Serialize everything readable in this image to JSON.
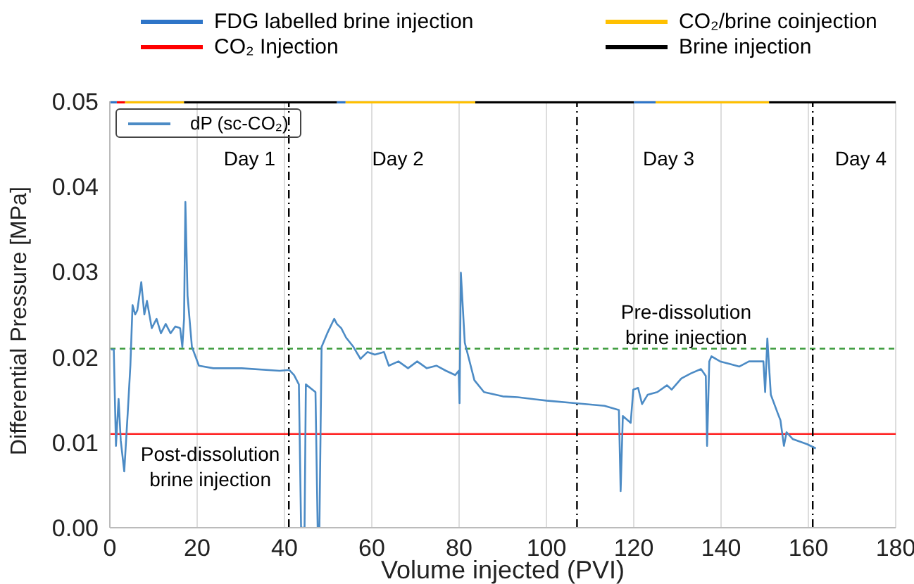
{
  "chart_data": {
    "type": "line",
    "xlabel": "Volume injected (PVI)",
    "ylabel": "Differential Pressure [MPa]",
    "xlim": [
      0,
      180
    ],
    "ylim": [
      0,
      0.05
    ],
    "xticks": [
      0,
      20,
      40,
      60,
      80,
      100,
      120,
      140,
      160,
      180
    ],
    "yticks": [
      {
        "value": 0,
        "label": "0.00"
      },
      0.01,
      0.02,
      0.03,
      0.04,
      0.05
    ],
    "grid": true,
    "legend": "top",
    "marker": "none",
    "line_style": "solid",
    "series": [
      {
        "name": "FDG labelled brine injection",
        "color": "#2e75c8",
        "x": [
          0,
          1.6,
          30,
          52,
          54,
          90,
          120,
          125
        ],
        "values": [
          0.05,
          0.05,
          null,
          0.05,
          0.05,
          null,
          0.05,
          0.05
        ]
      },
      {
        "name": "CO₂ Injection",
        "color": "#ff0000",
        "x": [
          1.6,
          3.5
        ],
        "values": [
          0.05,
          0.05
        ]
      },
      {
        "name": "CO₂/brine coinjection",
        "color": "#ffc000",
        "x": [
          3.5,
          17,
          30,
          54,
          83.7,
          100,
          125,
          151
        ],
        "values": [
          0.05,
          0.05,
          null,
          0.05,
          0.05,
          null,
          0.05,
          0.05
        ]
      },
      {
        "name": "Brine injection",
        "color": "#000000",
        "x": [
          17,
          52,
          70,
          83.7,
          120,
          140,
          151,
          180
        ],
        "values": [
          0.05,
          0.05,
          null,
          0.05,
          0.05,
          null,
          0.05,
          0.05
        ]
      },
      {
        "name": "dP (sc-CO₂)",
        "color": "#4c8bc5",
        "x": [
          0.3,
          0.9,
          1.4,
          2.0,
          2.5,
          3.3,
          4.1,
          4.7,
          5.2,
          5.8,
          6.3,
          7.2,
          7.9,
          8.5,
          9.6,
          10.7,
          11.7,
          12.8,
          13.9,
          15,
          16.1,
          16.6,
          17,
          17.3,
          17.8,
          18.8,
          20.4,
          23.7,
          30.2,
          38.9,
          41.1,
          42.2,
          43.3,
          43.8,
          44.6,
          44.9,
          47.1,
          47.6,
          48,
          48.5,
          49.8,
          51.4,
          52,
          53,
          54.1,
          55.8,
          57.4,
          59,
          60.7,
          62.8,
          63.9,
          66.1,
          68.3,
          70.4,
          72.6,
          74.8,
          77,
          79.1,
          79.9,
          80.1,
          80.4,
          81.3,
          83.5,
          85.7,
          90,
          93.4,
          100,
          106.6,
          113.3,
          116.6,
          117,
          117.5,
          119.3,
          119.9,
          121,
          121.9,
          123.2,
          125.4,
          127.6,
          128.7,
          130.9,
          133.1,
          135.4,
          136.5,
          136.8,
          137.3,
          137.8,
          139.8,
          142,
          144.2,
          146.4,
          149.7,
          150.1,
          150.6,
          151.4,
          153,
          153.6,
          154.4,
          155,
          156.4,
          158,
          159.7,
          161.7
        ],
        "values": [
          0.0209,
          0.0209,
          0.0096,
          0.0151,
          0.0102,
          0.0066,
          0.0135,
          0.019,
          0.0261,
          0.025,
          0.0255,
          0.0288,
          0.025,
          0.0266,
          0.0234,
          0.0245,
          0.0228,
          0.0239,
          0.0228,
          0.0236,
          0.0234,
          0.0212,
          0.0245,
          0.0382,
          0.0272,
          0.0212,
          0.019,
          0.0187,
          0.0187,
          0.0184,
          0.0185,
          0.0179,
          0.0168,
          0,
          0,
          0.0168,
          0.0159,
          0,
          0,
          0.0212,
          0.0228,
          0.0245,
          0.0239,
          0.0234,
          0.0223,
          0.0212,
          0.0198,
          0.0206,
          0.0203,
          0.0206,
          0.019,
          0.0195,
          0.0187,
          0.0195,
          0.0187,
          0.019,
          0.0184,
          0.0179,
          0.0184,
          0.0146,
          0.0299,
          0.0217,
          0.0173,
          0.0159,
          0.0154,
          0.0153,
          0.0149,
          0.0146,
          0.0143,
          0.0138,
          0.0043,
          0.0131,
          0.0123,
          0.0162,
          0.0164,
          0.0145,
          0.0156,
          0.0159,
          0.0167,
          0.0162,
          0.0175,
          0.0181,
          0.0186,
          0.0178,
          0.0096,
          0.0195,
          0.0201,
          0.0195,
          0.0192,
          0.0189,
          0.0195,
          0.0195,
          0.0159,
          0.0222,
          0.0156,
          0.0134,
          0.0126,
          0.0096,
          0.0112,
          0.0104,
          0.0101,
          0.0098,
          0.0093
        ]
      }
    ],
    "ref_lines": [
      {
        "axis": "y",
        "value": 0.021,
        "color": "#3a9a3a",
        "line_style": "dashed"
      },
      {
        "axis": "y",
        "value": 0.011,
        "color": "#ff2020",
        "line_style": "solid"
      },
      {
        "axis": "x",
        "value": 41,
        "color": "#000000",
        "line_style": "dashdot"
      },
      {
        "axis": "x",
        "value": 107,
        "color": "#000000",
        "line_style": "dashdot"
      },
      {
        "axis": "x",
        "value": 161,
        "color": "#000000",
        "line_style": "dashdot"
      }
    ],
    "annotations": [
      "Day 1",
      "Day 2",
      "Day 3",
      "Day 4",
      "Post-dissolution\nbrine injection",
      "Pre-dissolution\nbrine injection"
    ]
  }
}
